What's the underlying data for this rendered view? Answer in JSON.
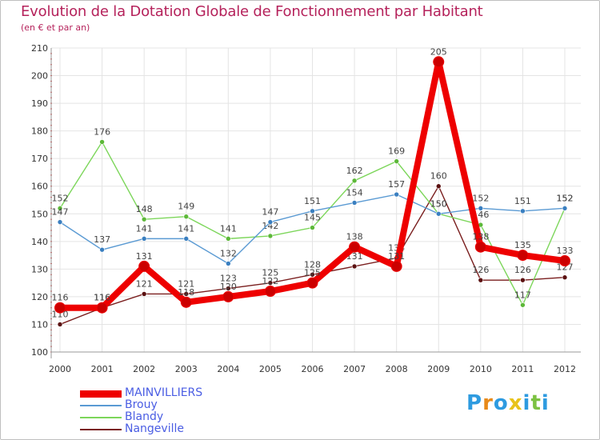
{
  "title": "Evolution de la Dotation Globale de Fonctionnement par Habitant",
  "subtitle": "(en € et par an)",
  "brand": {
    "letters": [
      {
        "ch": "P",
        "color": "#2e9be0"
      },
      {
        "ch": "r",
        "color": "#e88a1a"
      },
      {
        "ch": "o",
        "color": "#2e9be0"
      },
      {
        "ch": "x",
        "color": "#e8c31a"
      },
      {
        "ch": "i",
        "color": "#2e9be0"
      },
      {
        "ch": "t",
        "color": "#7cc242"
      },
      {
        "ch": "i",
        "color": "#2e9be0"
      }
    ]
  },
  "chart_data": {
    "type": "line",
    "title": "Evolution de la Dotation Globale de Fonctionnement par Habitant",
    "ylabel": "(en € et par an)",
    "xlabel": "",
    "ylim": [
      100,
      210
    ],
    "yticks": [
      100,
      110,
      120,
      130,
      140,
      150,
      160,
      170,
      180,
      190,
      200,
      210
    ],
    "categories": [
      "2000",
      "2001",
      "2002",
      "2003",
      "2004",
      "2005",
      "2006",
      "2007",
      "2008",
      "2009",
      "2010",
      "2011",
      "2012"
    ],
    "grid": true,
    "legend_position": "bottom-left",
    "series": [
      {
        "name": "Nangeville",
        "color": "#7a1e1e",
        "marker": "#5a1010",
        "values": [
          110,
          116,
          121,
          121,
          123,
          125,
          128,
          131,
          134,
          160,
          126,
          126,
          127
        ]
      },
      {
        "name": "Blandy",
        "color": "#7cd65a",
        "marker": "#5cb838",
        "values": [
          152,
          176,
          148,
          149,
          141,
          142,
          145,
          162,
          169,
          150,
          146,
          117,
          152
        ]
      },
      {
        "name": "Brouy",
        "color": "#5a9ad3",
        "marker": "#3a7fc0",
        "values": [
          147,
          137,
          141,
          141,
          132,
          147,
          151,
          154,
          157,
          150,
          152,
          151,
          152
        ]
      },
      {
        "name": "MAINVILLIERS",
        "color": "#ee0000",
        "marker": "#cc0000",
        "values": [
          116,
          116,
          131,
          118,
          120,
          122,
          125,
          138,
          131,
          205,
          138,
          135,
          133
        ]
      }
    ],
    "legend_order": [
      "MAINVILLIERS",
      "Brouy",
      "Blandy",
      "Nangeville"
    ]
  }
}
